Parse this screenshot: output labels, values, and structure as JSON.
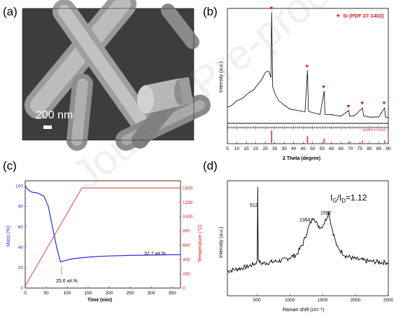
{
  "watermark": "Journal Pre-proof",
  "panels": {
    "a": {
      "label": "(a)",
      "scale_bar_text": "200 nm"
    },
    "b": {
      "label": "(b)",
      "legend": "Si (PDF 27-1402)",
      "ref_label": "Si(PDF 27-1402)",
      "ylabel": "Intensity (a.u.)",
      "xlabel": "2 Theta (degree)",
      "xticks": [
        "5",
        "10",
        "15",
        "20",
        "25",
        "30",
        "35",
        "40",
        "45",
        "50",
        "55",
        "60",
        "65",
        "70",
        "75",
        "80",
        "85",
        "90"
      ]
    },
    "c": {
      "label": "(c)",
      "ylabel_left": "Mass (%)",
      "ylabel_right": "Temperature (°C)",
      "xlabel": "Time (min)",
      "annotation_min": "25.6 wt.%",
      "annotation_end": "32.7 wt.%",
      "xticks": [
        "0",
        "50",
        "100",
        "150",
        "200",
        "250",
        "300",
        "350"
      ],
      "yticks_left": [
        "0",
        "20",
        "40",
        "60",
        "80",
        "100"
      ],
      "yticks_right": [
        "0",
        "200",
        "400",
        "600",
        "800",
        "1000",
        "1200",
        "1400"
      ]
    },
    "d": {
      "label": "(d)",
      "ratio_text": "I",
      "ratio_g": "G",
      "ratio_slash": "/I",
      "ratio_d": "D",
      "ratio_val": "=1.12",
      "peak_512": "512",
      "peak_1364": "1364",
      "peak_1592": "1592",
      "ylabel": "Intensity (a.u.)",
      "xlabel": "Raman shift (cm⁻¹)",
      "xticks": [
        "500",
        "1000",
        "1500",
        "2000",
        "2500"
      ]
    }
  },
  "colors": {
    "si_marker": "#e0141c",
    "mass_line": "#2a2ae6",
    "temp_line": "#e0141c",
    "axis": "#000000"
  },
  "chart_data": [
    {
      "type": "line",
      "panel": "b",
      "xlabel": "2 Theta (degree)",
      "ylabel": "Intensity (a.u.)",
      "xlim": [
        5,
        90
      ],
      "legend": "Si (PDF 27-1402)",
      "peaks_2theta": [
        28.4,
        47.3,
        56.1,
        69.1,
        76.4,
        88.0
      ],
      "reference_lines": [
        28.4,
        47.3,
        56.1,
        69.1,
        76.4,
        88.0
      ],
      "reference_heights": [
        1.0,
        0.55,
        0.35,
        0.12,
        0.18,
        0.2
      ],
      "series": [
        {
          "values_description_points": [
            [
              5,
              0.12
            ],
            [
              7,
              0.14
            ],
            [
              10,
              0.18
            ],
            [
              13,
              0.21
            ],
            [
              16,
              0.25
            ],
            [
              19,
              0.29
            ],
            [
              21,
              0.33
            ],
            [
              23,
              0.38
            ],
            [
              25,
              0.44
            ],
            [
              26,
              0.46
            ],
            [
              27,
              0.45
            ],
            [
              28,
              0.4
            ],
            [
              28.4,
              1.0
            ],
            [
              28.9,
              0.32
            ],
            [
              30,
              0.25
            ],
            [
              32,
              0.19
            ],
            [
              35,
              0.14
            ],
            [
              38,
              0.11
            ],
            [
              42,
              0.09
            ],
            [
              46,
              0.085
            ],
            [
              47.3,
              0.46
            ],
            [
              47.8,
              0.09
            ],
            [
              50,
              0.07
            ],
            [
              54,
              0.06
            ],
            [
              56.1,
              0.27
            ],
            [
              56.6,
              0.06
            ],
            [
              60,
              0.05
            ],
            [
              65,
              0.045
            ],
            [
              69.1,
              0.09
            ],
            [
              69.6,
              0.045
            ],
            [
              72,
              0.04
            ],
            [
              76.4,
              0.12
            ],
            [
              76.9,
              0.04
            ],
            [
              80,
              0.035
            ],
            [
              85,
              0.03
            ],
            [
              88,
              0.12
            ],
            [
              88.5,
              0.03
            ],
            [
              90,
              0.03
            ]
          ]
        }
      ]
    },
    {
      "type": "line",
      "panel": "c",
      "xlabel": "Time (min)",
      "xlim": [
        0,
        370
      ],
      "series": [
        {
          "name": "Mass (%)",
          "axis": "left",
          "ylim": [
            0,
            105
          ],
          "points": [
            [
              0,
              100
            ],
            [
              5,
              97
            ],
            [
              15,
              94
            ],
            [
              30,
              93
            ],
            [
              45,
              90
            ],
            [
              55,
              80
            ],
            [
              65,
              60
            ],
            [
              75,
              40
            ],
            [
              84,
              25.6
            ],
            [
              95,
              27
            ],
            [
              110,
              28.5
            ],
            [
              130,
              29.5
            ],
            [
              160,
              30.6
            ],
            [
              200,
              31.4
            ],
            [
              250,
              32
            ],
            [
              300,
              32.3
            ],
            [
              350,
              32.6
            ],
            [
              370,
              32.7
            ]
          ]
        },
        {
          "name": "Temperature (°C)",
          "axis": "right",
          "ylim": [
            0,
            1500
          ],
          "points": [
            [
              0,
              30
            ],
            [
              135,
              1400
            ],
            [
              370,
              1400
            ]
          ]
        }
      ],
      "annotations": [
        {
          "x": 84,
          "text": "25.6 wt.%"
        },
        {
          "x": 330,
          "text": "32.7 wt.%"
        }
      ]
    },
    {
      "type": "line",
      "panel": "d",
      "xlabel": "Raman shift (cm⁻¹)",
      "ylabel": "Intensity (a.u.)",
      "xlim": [
        50,
        2500
      ],
      "peaks": [
        512,
        1364,
        1592
      ],
      "ratio_IG_ID": 1.12,
      "series": [
        {
          "points": [
            [
              50,
              0.2
            ],
            [
              200,
              0.22
            ],
            [
              350,
              0.24
            ],
            [
              480,
              0.27
            ],
            [
              505,
              0.3
            ],
            [
              512,
              0.98
            ],
            [
              520,
              0.3
            ],
            [
              560,
              0.27
            ],
            [
              700,
              0.28
            ],
            [
              900,
              0.3
            ],
            [
              1100,
              0.35
            ],
            [
              1200,
              0.45
            ],
            [
              1300,
              0.62
            ],
            [
              1364,
              0.7
            ],
            [
              1420,
              0.62
            ],
            [
              1480,
              0.6
            ],
            [
              1540,
              0.66
            ],
            [
              1592,
              0.74
            ],
            [
              1640,
              0.6
            ],
            [
              1720,
              0.42
            ],
            [
              1850,
              0.34
            ],
            [
              2000,
              0.31
            ],
            [
              2200,
              0.29
            ],
            [
              2400,
              0.28
            ],
            [
              2500,
              0.28
            ]
          ]
        }
      ]
    }
  ]
}
